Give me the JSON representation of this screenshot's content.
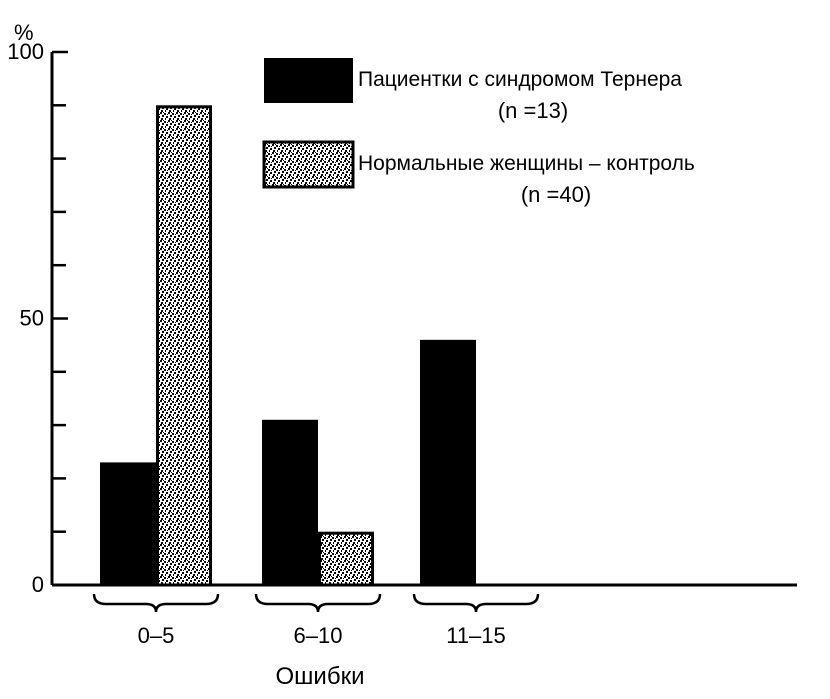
{
  "chart_data": {
    "type": "bar",
    "ylabel": "%",
    "xlabel": "Ошибки",
    "categories": [
      "0–5",
      "6–10",
      "11–15"
    ],
    "ylim": [
      0,
      100
    ],
    "y_ticks": [
      0,
      50,
      100
    ],
    "y_minor_ticks": [
      10,
      20,
      30,
      40,
      60,
      70,
      80,
      90
    ],
    "legend_position": "top-right",
    "series": [
      {
        "name": "Пациентки с синдромом Тернера",
        "n_label": "(n =13)",
        "fill": "solid",
        "color": "#000000",
        "values": [
          23,
          31,
          46
        ]
      },
      {
        "name": "Нормальные женщины – контроль",
        "n_label": "(n =40)",
        "fill": "stipple",
        "color": "#000000",
        "values": [
          90,
          10,
          0
        ]
      }
    ]
  }
}
